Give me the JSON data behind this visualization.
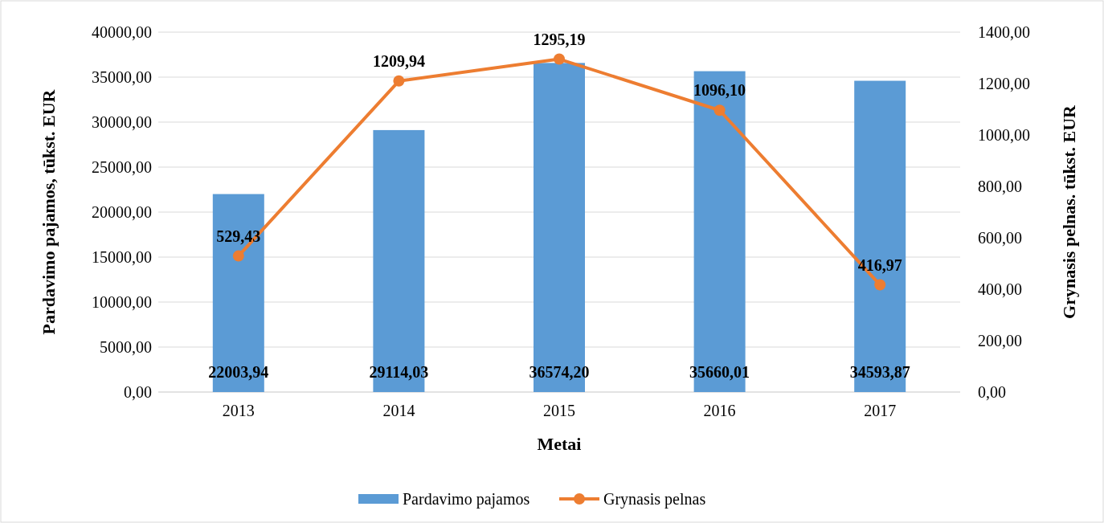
{
  "chart_data": {
    "type": "bar",
    "xlabel": "Metai",
    "ylabel": "Pardavimo pajamos, tūkst. EUR",
    "y2label": "Grynasis pelnas. tūkst. EUR",
    "categories": [
      "2013",
      "2014",
      "2015",
      "2016",
      "2017"
    ],
    "series": [
      {
        "name": "Pardavimo pajamos",
        "color": "#5b9bd5",
        "values": [
          22003.94,
          29114.03,
          36574.2,
          35660.01,
          34593.87
        ],
        "value_labels": [
          "22003,94",
          "29114,03",
          "36574,20",
          "35660,01",
          "34593,87"
        ]
      },
      {
        "name": "Grynasis pelnas",
        "type": "line",
        "axis": "y2",
        "color": "#ed7d31",
        "marker": "circle",
        "values": [
          529.43,
          1209.94,
          1295.19,
          1096.1,
          416.97
        ],
        "value_labels": [
          "529,43",
          "1209,94",
          "1295,19",
          "1096,10",
          "416,97"
        ]
      }
    ],
    "ylim": [
      0,
      40000
    ],
    "yticks": [
      {
        "value": 0,
        "label": "0,00"
      },
      {
        "value": 5000,
        "label": "5000,00"
      },
      {
        "value": 10000,
        "label": "10000,00"
      },
      {
        "value": 15000,
        "label": "15000,00"
      },
      {
        "value": 20000,
        "label": "20000,00"
      },
      {
        "value": 25000,
        "label": "25000,00"
      },
      {
        "value": 30000,
        "label": "30000,00"
      },
      {
        "value": 35000,
        "label": "35000,00"
      },
      {
        "value": 40000,
        "label": "40000,00"
      }
    ],
    "y2lim": [
      0,
      1400
    ],
    "y2ticks": [
      {
        "value": 0,
        "label": "0,00"
      },
      {
        "value": 200,
        "label": "200,00"
      },
      {
        "value": 400,
        "label": "400,00"
      },
      {
        "value": 600,
        "label": "600,00"
      },
      {
        "value": 800,
        "label": "800,00"
      },
      {
        "value": 1000,
        "label": "1000,00"
      },
      {
        "value": 1200,
        "label": "1200,00"
      },
      {
        "value": 1400,
        "label": "1400,00"
      }
    ],
    "grid": "y",
    "legend": "bottom"
  }
}
